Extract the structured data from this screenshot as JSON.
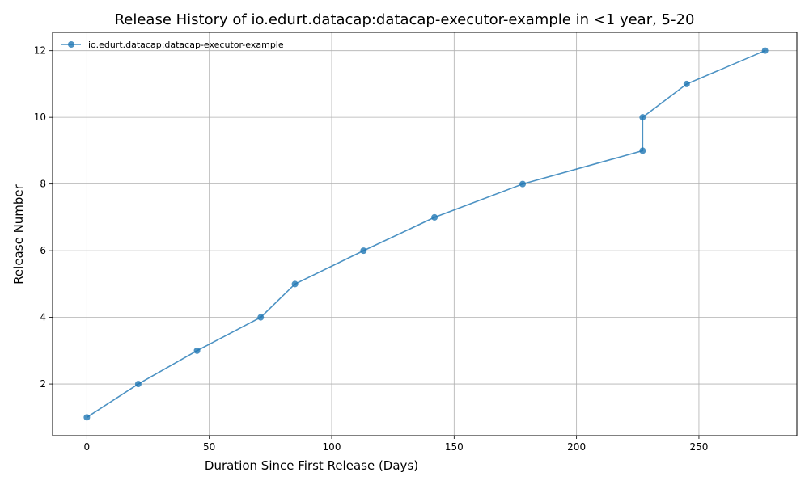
{
  "chart_data": {
    "type": "line",
    "title": "Release History of io.edurt.datacap:datacap-executor-example in <1 year, 5-20",
    "xlabel": "Duration Since First Release (Days)",
    "ylabel": "Release Number",
    "xlim": [
      -14,
      290
    ],
    "ylim": [
      0.45,
      12.55
    ],
    "xticks": [
      0,
      50,
      100,
      150,
      200,
      250
    ],
    "yticks": [
      2,
      4,
      6,
      8,
      10,
      12
    ],
    "grid": true,
    "legend_position": "top-left",
    "line_color": "#1f77b4",
    "series": [
      {
        "name": "io.edurt.datacap:datacap-executor-example",
        "x": [
          0,
          21,
          45,
          71,
          85,
          113,
          142,
          178,
          227,
          227,
          245,
          277
        ],
        "y": [
          1,
          2,
          3,
          4,
          5,
          6,
          7,
          8,
          9,
          10,
          11,
          12
        ]
      }
    ]
  }
}
